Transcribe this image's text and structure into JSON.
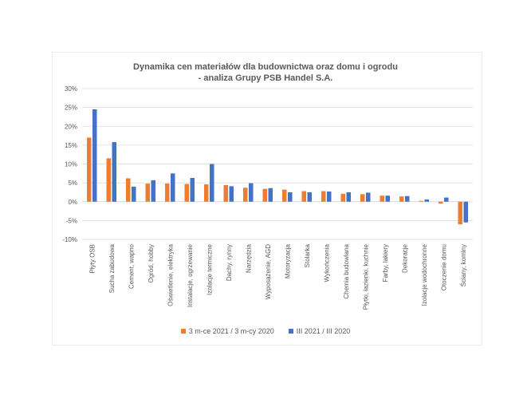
{
  "colors": {
    "series1": "#ED7D31",
    "series2": "#4472C4",
    "grid": "#D9D9D9",
    "text": "#595959"
  },
  "chart_data": {
    "type": "bar",
    "title": "Dynamika cen materiałów dla budownictwa oraz domu i ogrodu",
    "subtitle": "- analiza Grupy PSB Handel S.A.",
    "xlabel": "",
    "ylabel": "",
    "ylim": [
      -10,
      30
    ],
    "yticks": [
      -10,
      -5,
      0,
      5,
      10,
      15,
      20,
      25,
      30
    ],
    "ytick_labels": [
      "-10%",
      "-5%",
      "0%",
      "5%",
      "10%",
      "15%",
      "20%",
      "25%",
      "30%"
    ],
    "grid": true,
    "legend_position": "bottom",
    "categories": [
      "Płyty OSB",
      "Sucha zabudowa",
      "Cement, wapno",
      "Ogród, hobby",
      "Oświetlenie, elektryka",
      "Instalacje, ogrzewanie",
      "Izolacje termiczne",
      "Dachy, rynny",
      "Narzędzia",
      "Wyposażenie, AGD",
      "Motoryzacja",
      "Stolarka",
      "Wykończenia",
      "Chemia budowlana",
      "Płytki, łazienki, kuchnie",
      "Farby, lakiery",
      "Dekoracje",
      "Izolacje wodochronne",
      "Otoczenie domu",
      "Ściany, kominy"
    ],
    "series": [
      {
        "name": "3 m-ce 2021 / 3 m-cy 2020",
        "values": [
          17,
          11.5,
          6.2,
          4.8,
          4.8,
          4.7,
          4.6,
          4.4,
          3.7,
          3.4,
          3.2,
          2.8,
          2.8,
          2.1,
          2.0,
          1.6,
          1.4,
          0.2,
          -0.5,
          -6.0
        ]
      },
      {
        "name": "III 2021 / III 2020",
        "values": [
          24.5,
          15.8,
          4.0,
          5.7,
          7.5,
          6.3,
          10.0,
          4.1,
          4.9,
          3.6,
          2.5,
          2.5,
          2.7,
          2.5,
          2.4,
          1.6,
          1.5,
          0.6,
          1.1,
          -5.5
        ]
      }
    ]
  }
}
